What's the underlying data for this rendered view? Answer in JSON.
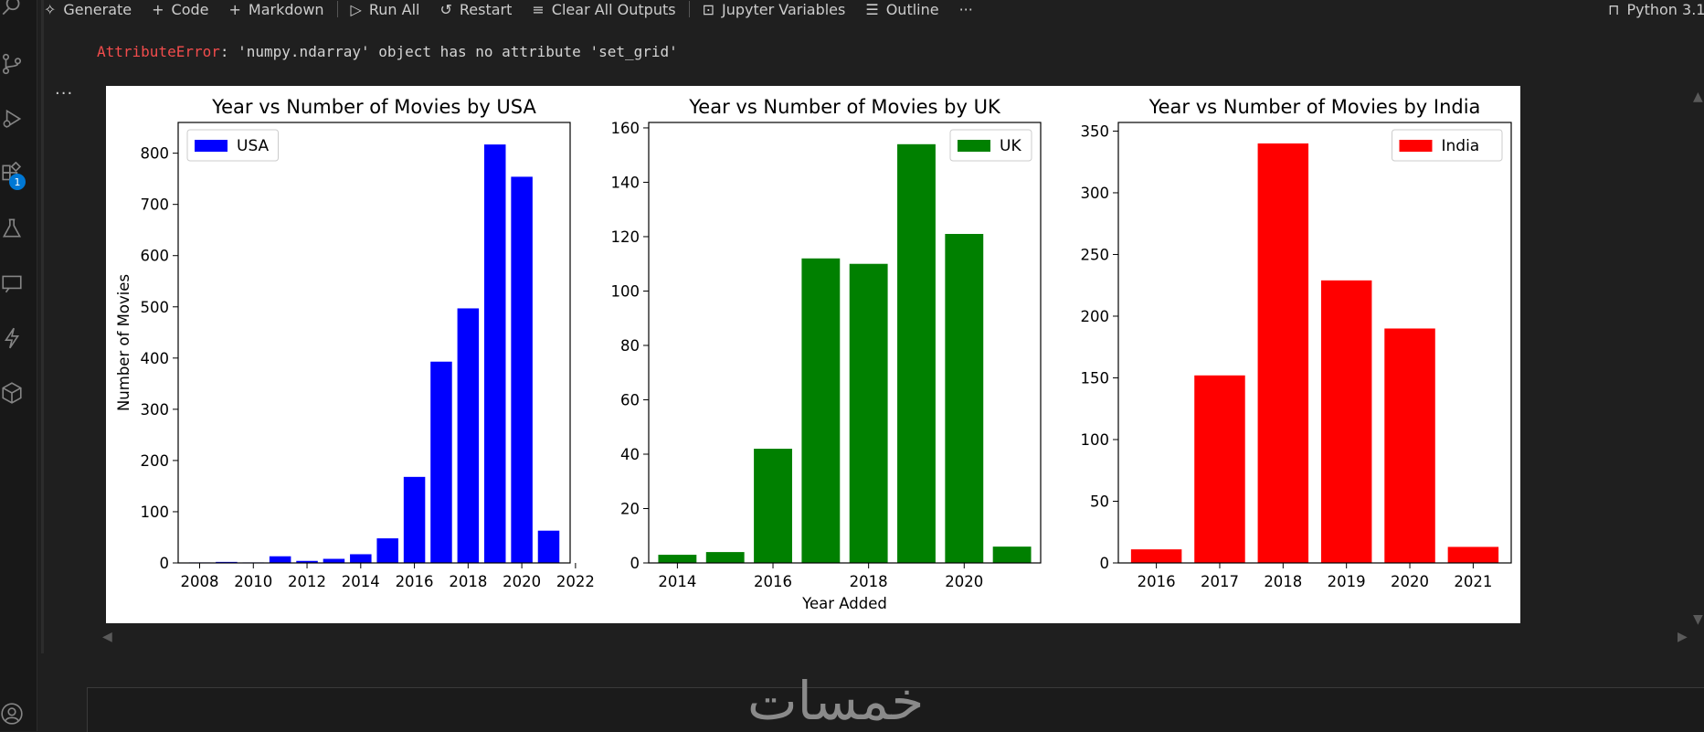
{
  "toolbar": {
    "generate": "Generate",
    "code": "Code",
    "markdown": "Markdown",
    "run_all": "Run All",
    "restart": "Restart",
    "clear_outputs": "Clear All Outputs",
    "jupyter_variables": "Jupyter Variables",
    "outline": "Outline",
    "more": "···",
    "kernel": "Python 3.1"
  },
  "activity": {
    "extensions_badge": "1"
  },
  "output": {
    "error_name": "AttributeError",
    "error_message": ": 'numpy.ndarray' object has no attribute 'set_grid'",
    "more_actions": "···"
  },
  "watermark": "خمسات",
  "colors": {
    "usa": "#0000ff",
    "uk": "#008000",
    "india": "#ff0000",
    "error": "#f14c4c"
  },
  "chart_data": [
    {
      "type": "bar",
      "title": "Year vs Number of Movies by USA",
      "xlabel": "",
      "ylabel": "Number of Movies",
      "legend": "USA",
      "legend_position": "upper-left",
      "color": "#0000ff",
      "x": [
        2008,
        2009,
        2010,
        2011,
        2012,
        2013,
        2014,
        2015,
        2016,
        2017,
        2018,
        2019,
        2020,
        2021
      ],
      "values": [
        1,
        2,
        1,
        13,
        4,
        8,
        17,
        48,
        168,
        393,
        497,
        817,
        754,
        63
      ],
      "xlim": [
        2007.2,
        2021.8
      ],
      "ylim": [
        0,
        860
      ],
      "xticks": [
        "2008",
        "2010",
        "2012",
        "2014",
        "2016",
        "2018",
        "2020",
        "2022"
      ],
      "yticks": [
        "0",
        "100",
        "200",
        "300",
        "400",
        "500",
        "600",
        "700",
        "800"
      ]
    },
    {
      "type": "bar",
      "title": "Year vs Number of Movies by UK",
      "xlabel": "Year Added",
      "ylabel": "",
      "legend": "UK",
      "legend_position": "upper-right",
      "color": "#008000",
      "x": [
        2014,
        2015,
        2016,
        2017,
        2018,
        2019,
        2020,
        2021
      ],
      "values": [
        3,
        4,
        42,
        112,
        110,
        154,
        121,
        6
      ],
      "xlim": [
        2013.4,
        2021.6
      ],
      "ylim": [
        0,
        162
      ],
      "xticks": [
        "2014",
        "2016",
        "2018",
        "2020"
      ],
      "yticks": [
        "0",
        "20",
        "40",
        "60",
        "80",
        "100",
        "120",
        "140",
        "160"
      ]
    },
    {
      "type": "bar",
      "title": "Year vs Number of Movies by India",
      "xlabel": "",
      "ylabel": "",
      "legend": "India",
      "legend_position": "upper-right",
      "color": "#ff0000",
      "categories": [
        "2016",
        "2017",
        "2018",
        "2019",
        "2020",
        "2021"
      ],
      "values": [
        11,
        152,
        340,
        229,
        190,
        13
      ],
      "ylim": [
        0,
        357
      ],
      "yticks": [
        "0",
        "50",
        "100",
        "150",
        "200",
        "250",
        "300",
        "350"
      ]
    }
  ]
}
